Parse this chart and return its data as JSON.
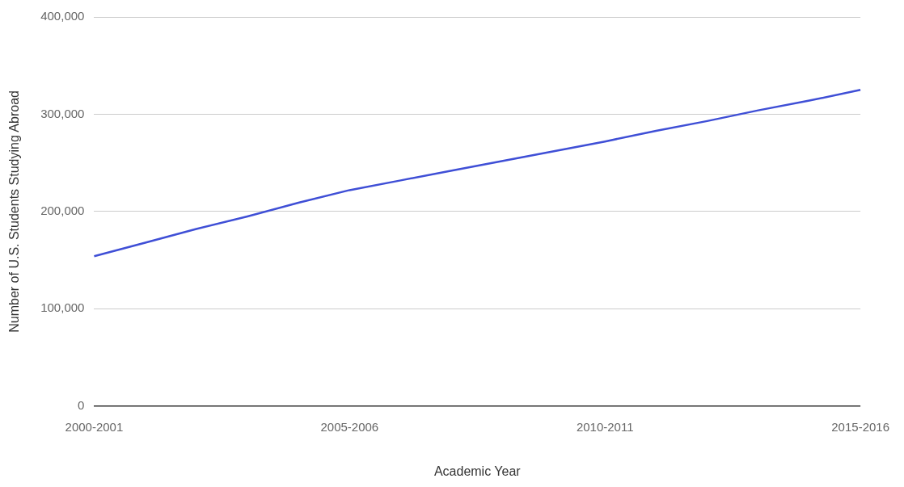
{
  "chart_data": {
    "type": "line",
    "xlabel": "Academic Year",
    "ylabel": "Number of U.S. Students Studying Abroad",
    "categories": [
      "2000-2001",
      null,
      null,
      null,
      null,
      "2005-2006",
      null,
      null,
      null,
      null,
      "2010-2011",
      null,
      null,
      null,
      null,
      "2015-2016"
    ],
    "series": [
      {
        "color": "#3f4fd6",
        "values": [
          154000,
          168000,
          182000,
          195000,
          209000,
          222000,
          232000,
          242000,
          252000,
          262000,
          272000,
          283000,
          293000,
          304000,
          314000,
          325000
        ]
      }
    ],
    "ylim": [
      0,
      400000
    ],
    "yticks": [
      {
        "value": 0,
        "label": "0"
      },
      {
        "value": 100000,
        "label": "100,000"
      },
      {
        "value": 200000,
        "label": "200,000"
      },
      {
        "value": 300000,
        "label": "300,000"
      },
      {
        "value": 400000,
        "label": "400,000"
      }
    ],
    "grid": "y",
    "legend": false,
    "marker": "none",
    "line_style": "solid"
  }
}
